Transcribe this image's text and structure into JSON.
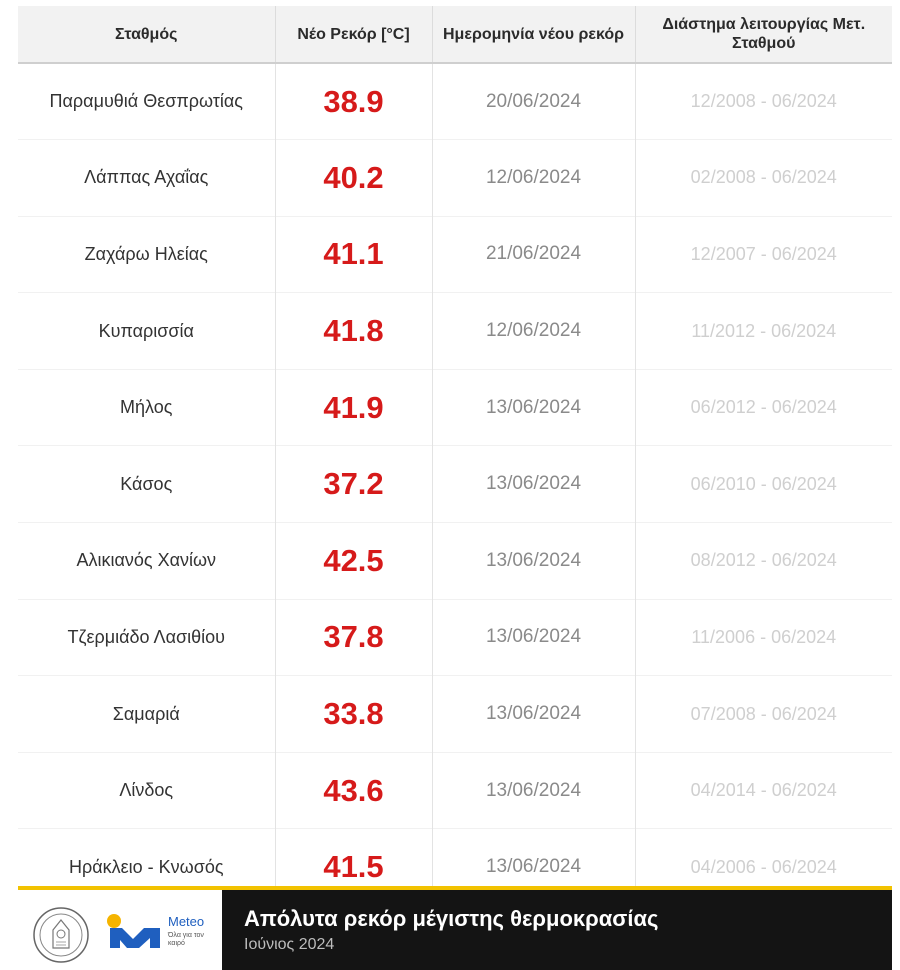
{
  "table": {
    "headers": [
      "Σταθμός",
      "Νέο Ρεκόρ [°C]",
      "Ημερομηνία νέου ρεκόρ",
      "Διάστημα λειτουργίας Μετ. Σταθμού"
    ],
    "rows": [
      {
        "station": "Παραμυθιά Θεσπρωτίας",
        "record": "38.9",
        "date": "20/06/2024",
        "period": "12/2008 - 06/2024"
      },
      {
        "station": "Λάππας Αχαΐας",
        "record": "40.2",
        "date": "12/06/2024",
        "period": "02/2008 - 06/2024"
      },
      {
        "station": "Ζαχάρω Ηλείας",
        "record": "41.1",
        "date": "21/06/2024",
        "period": "12/2007 - 06/2024"
      },
      {
        "station": "Κυπαρισσία",
        "record": "41.8",
        "date": "12/06/2024",
        "period": "11/2012 - 06/2024"
      },
      {
        "station": "Μήλος",
        "record": "41.9",
        "date": "13/06/2024",
        "period": "06/2012 - 06/2024"
      },
      {
        "station": "Κάσος",
        "record": "37.2",
        "date": "13/06/2024",
        "period": "06/2010 - 06/2024"
      },
      {
        "station": "Αλικιανός Χανίων",
        "record": "42.5",
        "date": "13/06/2024",
        "period": "08/2012 - 06/2024"
      },
      {
        "station": "Τζερμιάδο Λασιθίου",
        "record": "37.8",
        "date": "13/06/2024",
        "period": "11/2006 - 06/2024"
      },
      {
        "station": "Σαμαριά",
        "record": "33.8",
        "date": "13/06/2024",
        "period": "07/2008 - 06/2024"
      },
      {
        "station": "Λίνδος",
        "record": "43.6",
        "date": "13/06/2024",
        "period": "04/2014 - 06/2024"
      },
      {
        "station": "Ηράκλειο - Κνωσός",
        "record": "41.5",
        "date": "13/06/2024",
        "period": "04/2006 - 06/2024"
      }
    ]
  },
  "footer": {
    "title": "Απόλυτα ρεκόρ μέγιστης θερμοκρασίας",
    "subtitle": "Ιούνιος 2024",
    "logo_name": "Meteo",
    "logo_tagline": "Όλα για τον καιρό",
    "icons": [
      "observatory-seal-icon",
      "meteo-logo-icon"
    ]
  },
  "colors": {
    "record_red": "#d61a1a",
    "header_bg": "#f2f2f2",
    "footer_bg": "#141414",
    "footer_accent": "#f2c200",
    "meteo_blue": "#1f5fbf",
    "meteo_yellow": "#f5b400"
  }
}
